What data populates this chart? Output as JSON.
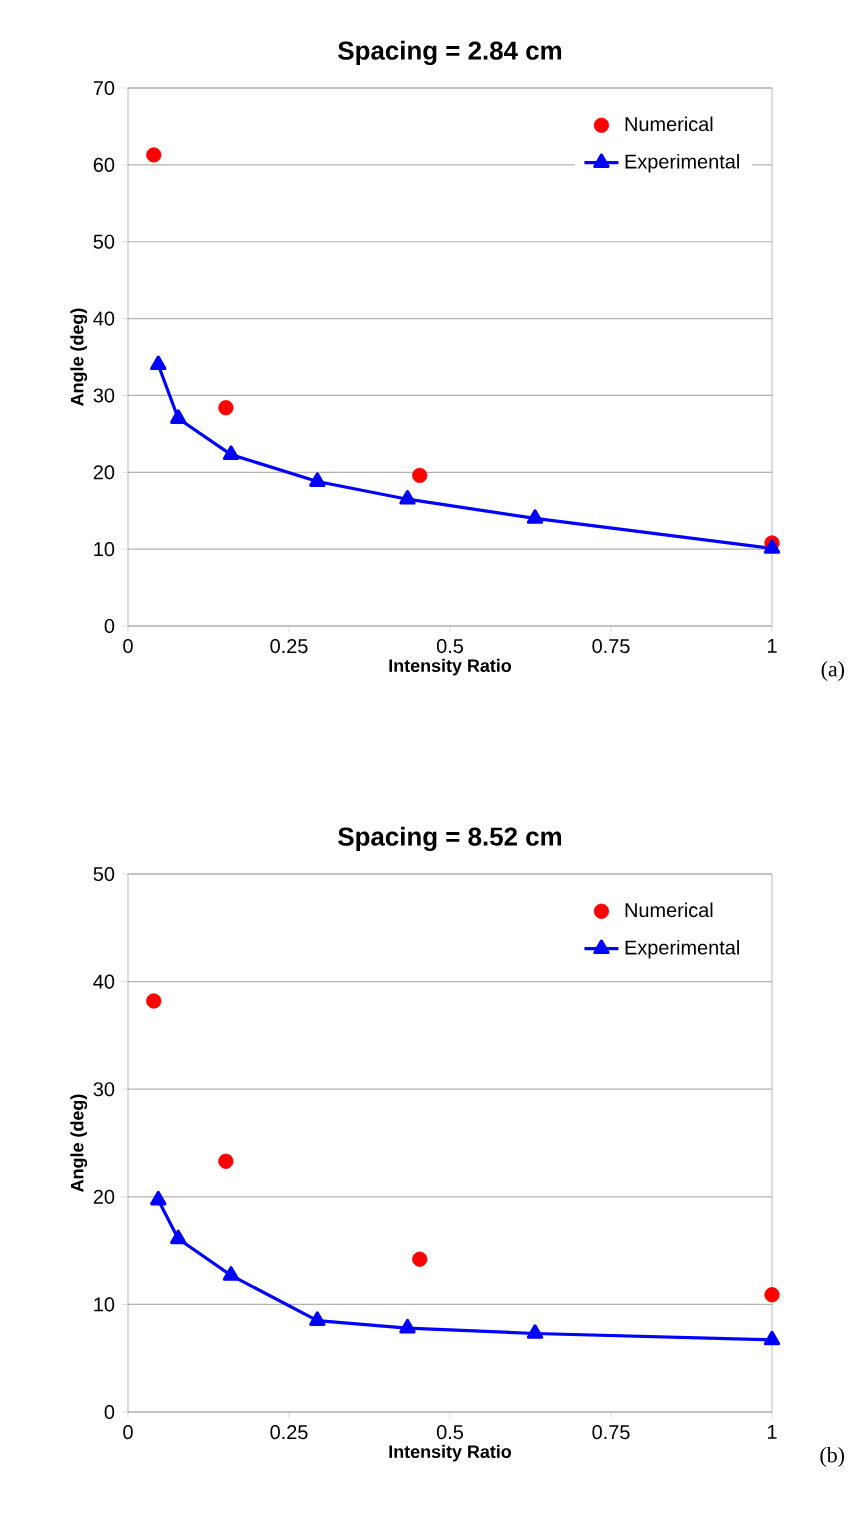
{
  "chart_data": [
    {
      "type": "line",
      "title": "Spacing = 2.84 cm",
      "xlabel": "Intensity Ratio",
      "ylabel": "Angle (deg)",
      "annotations": [
        "(a)"
      ],
      "xlim": [
        0,
        1
      ],
      "xticks": [
        0,
        0.25,
        0.5,
        0.75,
        1
      ],
      "ylim": [
        0,
        70
      ],
      "yticks": [
        0,
        10,
        20,
        30,
        40,
        50,
        60,
        70
      ],
      "grid": "y",
      "legend": "top right",
      "series": [
        {
          "name": "Numerical",
          "type": "scatter",
          "color": "#ff0000",
          "marker": "circle",
          "x": [
            0.04,
            0.152,
            0.453,
            1.0
          ],
          "values": [
            61.3,
            28.4,
            19.6,
            10.8
          ]
        },
        {
          "name": "Experimental",
          "color": "#0000ff",
          "marker": "triangle",
          "x": [
            0.047,
            0.078,
            0.16,
            0.294,
            0.434,
            0.632,
            1.0
          ],
          "values": [
            34.0,
            27.0,
            22.3,
            18.8,
            16.5,
            14.0,
            10.1
          ]
        }
      ]
    },
    {
      "type": "line",
      "title": "Spacing = 8.52 cm",
      "xlabel": "Intensity Ratio",
      "ylabel": "Angle (deg)",
      "annotations": [
        "(b)"
      ],
      "xlim": [
        0,
        1
      ],
      "xticks": [
        0,
        0.25,
        0.5,
        0.75,
        1
      ],
      "ylim": [
        0,
        50
      ],
      "yticks": [
        0,
        10,
        20,
        30,
        40,
        50
      ],
      "grid": "y",
      "legend": "top right",
      "series": [
        {
          "name": "Numerical",
          "type": "scatter",
          "color": "#ff0000",
          "marker": "circle",
          "x": [
            0.04,
            0.152,
            0.453,
            1.0
          ],
          "values": [
            38.2,
            23.3,
            14.2,
            10.9
          ]
        },
        {
          "name": "Experimental",
          "color": "#0000ff",
          "marker": "triangle",
          "x": [
            0.047,
            0.078,
            0.16,
            0.294,
            0.434,
            0.632,
            1.0
          ],
          "values": [
            19.7,
            16.1,
            12.7,
            8.5,
            7.8,
            7.3,
            6.7
          ]
        }
      ]
    }
  ]
}
